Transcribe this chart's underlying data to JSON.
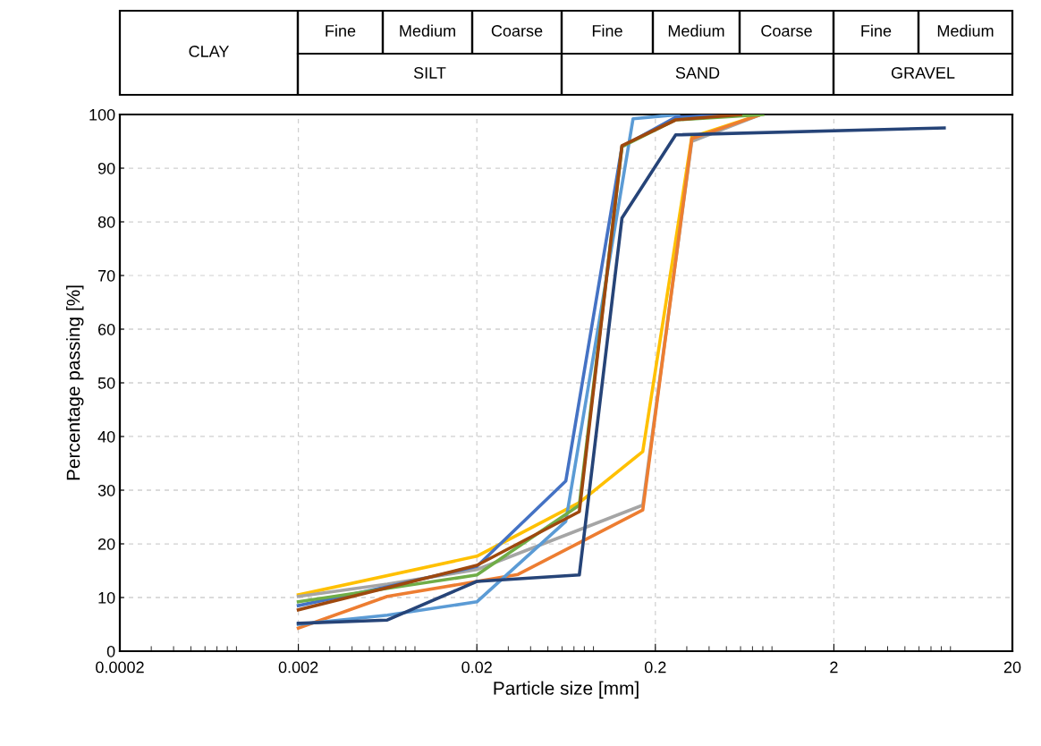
{
  "chart_data": {
    "type": "line",
    "xlabel": "Particle size [mm]",
    "ylabel": "Percentage passing [%]",
    "log": "x",
    "grid": true,
    "marker": "none",
    "line_style": "solid",
    "xlim": [
      0.0002,
      20
    ],
    "xticks": [
      {
        "value": 0.0002,
        "label": "0.0002"
      },
      {
        "value": 0.002,
        "label": "0.002"
      },
      {
        "value": 0.02,
        "label": "0.02"
      },
      {
        "value": 0.2,
        "label": "0.2"
      },
      {
        "value": 2,
        "label": "2"
      },
      {
        "value": 20,
        "label": "20"
      }
    ],
    "ylim": [
      0,
      100
    ],
    "yticks": [
      0,
      10,
      20,
      30,
      40,
      50,
      60,
      70,
      80,
      90,
      100
    ],
    "series": [
      {
        "color": "#ffc000",
        "x": [
          0.002,
          0.02,
          0.075,
          0.17,
          0.32,
          0.78
        ],
        "values": [
          10.5,
          17.7,
          27.7,
          37.2,
          95.8,
          100
        ]
      },
      {
        "color": "#a5a5a5",
        "x": [
          0.002,
          0.0063,
          0.02,
          0.17,
          0.32,
          0.78
        ],
        "values": [
          10.2,
          12.5,
          15.2,
          27.2,
          95,
          100
        ]
      },
      {
        "color": "#ed7d31",
        "x": [
          0.002,
          0.0063,
          0.02,
          0.034,
          0.17,
          0.32,
          0.78
        ],
        "values": [
          4.3,
          10.2,
          13,
          14.3,
          26.3,
          95.5,
          100
        ]
      },
      {
        "color": "#5b9bd5",
        "x": [
          0.002,
          0.0063,
          0.02,
          0.063,
          0.15,
          0.27
        ],
        "values": [
          5,
          6.7,
          9.2,
          24.2,
          99.2,
          100
        ]
      },
      {
        "color": "#264478",
        "x": [
          0.002,
          0.0063,
          0.02,
          0.075,
          0.13,
          0.26,
          8.3
        ],
        "values": [
          5.2,
          5.8,
          13,
          14.2,
          80.7,
          96.2,
          97.5
        ]
      },
      {
        "color": "#4472c4",
        "x": [
          0.002,
          0.0063,
          0.02,
          0.063,
          0.13,
          0.26,
          0.6
        ],
        "values": [
          8.5,
          12,
          15.8,
          31.7,
          94,
          99.5,
          100
        ]
      },
      {
        "color": "#70ad47",
        "x": [
          0.002,
          0.02,
          0.075,
          0.13,
          0.26,
          0.8
        ],
        "values": [
          9.2,
          14.2,
          27.2,
          94,
          99,
          100
        ]
      },
      {
        "color": "#9e480e",
        "x": [
          0.002,
          0.02,
          0.075,
          0.13,
          0.26,
          0.6
        ],
        "values": [
          7.7,
          16,
          26,
          94.2,
          99,
          100
        ]
      }
    ],
    "annotations": [
      "CLAY",
      "Fine",
      "Medium",
      "Coarse",
      "Fine",
      "Medium",
      "Coarse",
      "Fine",
      "Medium",
      "SILT",
      "SAND",
      "GRAVEL"
    ]
  }
}
